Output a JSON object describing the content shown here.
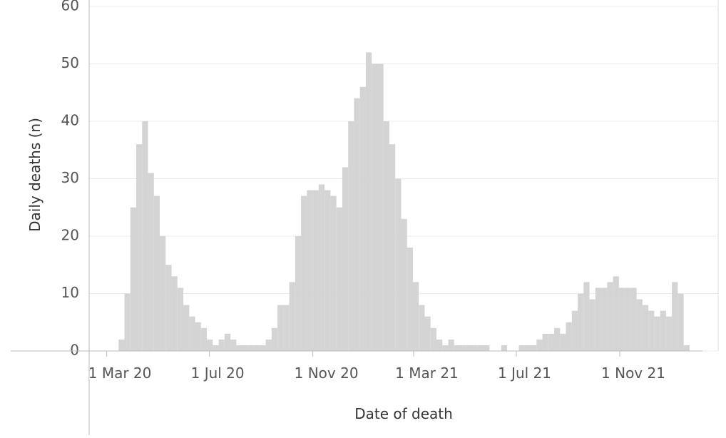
{
  "chart_data": {
    "type": "bar",
    "x_label": "Date of death",
    "y_label": "Daily deaths (n)",
    "x": [
      "2020-03-15",
      "2020-03-22",
      "2020-03-29",
      "2020-04-05",
      "2020-04-12",
      "2020-04-19",
      "2020-04-26",
      "2020-05-03",
      "2020-05-10",
      "2020-05-17",
      "2020-05-24",
      "2020-05-31",
      "2020-06-07",
      "2020-06-14",
      "2020-06-21",
      "2020-06-28",
      "2020-07-05",
      "2020-07-12",
      "2020-07-19",
      "2020-07-26",
      "2020-08-02",
      "2020-08-09",
      "2020-08-16",
      "2020-08-23",
      "2020-08-30",
      "2020-09-06",
      "2020-09-13",
      "2020-09-20",
      "2020-09-27",
      "2020-10-04",
      "2020-10-11",
      "2020-10-18",
      "2020-10-25",
      "2020-11-01",
      "2020-11-08",
      "2020-11-15",
      "2020-11-22",
      "2020-11-29",
      "2020-12-06",
      "2020-12-13",
      "2020-12-20",
      "2020-12-27",
      "2021-01-03",
      "2021-01-10",
      "2021-01-17",
      "2021-01-24",
      "2021-01-31",
      "2021-02-07",
      "2021-02-14",
      "2021-02-21",
      "2021-02-28",
      "2021-03-07",
      "2021-03-14",
      "2021-03-21",
      "2021-03-28",
      "2021-04-04",
      "2021-04-11",
      "2021-04-18",
      "2021-04-25",
      "2021-05-02",
      "2021-05-09",
      "2021-05-16",
      "2021-05-23",
      "2021-05-30",
      "2021-06-06",
      "2021-06-13",
      "2021-06-20",
      "2021-06-27",
      "2021-07-04",
      "2021-07-11",
      "2021-07-18",
      "2021-07-25",
      "2021-08-01",
      "2021-08-08",
      "2021-08-15",
      "2021-08-22",
      "2021-08-29",
      "2021-09-05",
      "2021-09-12",
      "2021-09-19",
      "2021-09-26",
      "2021-10-03",
      "2021-10-10",
      "2021-10-17",
      "2021-10-24",
      "2021-10-31",
      "2021-11-07",
      "2021-11-14",
      "2021-11-21",
      "2021-11-28",
      "2021-12-05",
      "2021-12-12",
      "2021-12-19",
      "2021-12-26",
      "2022-01-02",
      "2022-01-09",
      "2022-01-16"
    ],
    "values": [
      2,
      10,
      25,
      36,
      40,
      31,
      27,
      20,
      15,
      13,
      11,
      8,
      6,
      5,
      4,
      2,
      1,
      2,
      3,
      2,
      1,
      1,
      1,
      1,
      1,
      2,
      4,
      8,
      8,
      12,
      20,
      27,
      28,
      28,
      29,
      28,
      27,
      25,
      32,
      40,
      44,
      46,
      52,
      50,
      50,
      40,
      36,
      30,
      23,
      18,
      12,
      8,
      6,
      4,
      2,
      1,
      2,
      1,
      1,
      1,
      1,
      1,
      1,
      0,
      0,
      1,
      0,
      0,
      1,
      1,
      1,
      2,
      3,
      3,
      4,
      3,
      5,
      7,
      10,
      12,
      9,
      11,
      11,
      12,
      13,
      11,
      11,
      11,
      9,
      8,
      7,
      6,
      7,
      6,
      12,
      10,
      1
    ],
    "color": "#d4d4d4",
    "xlim": [
      "2020-02-09",
      "2022-02-26"
    ],
    "xticks": [
      {
        "value": "2020-03-01",
        "label": "1 Mar 20"
      },
      {
        "value": "2020-07-01",
        "label": "1 Jul 20"
      },
      {
        "value": "2020-11-01",
        "label": "1 Nov 20"
      },
      {
        "value": "2021-03-01",
        "label": "1 Mar 21"
      },
      {
        "value": "2021-07-01",
        "label": "1 Jul 21"
      },
      {
        "value": "2021-11-01",
        "label": "1 Nov 21"
      }
    ],
    "ylim": [
      0,
      60.5
    ],
    "yticks": [
      0,
      10,
      20,
      30,
      40,
      50,
      60
    ],
    "grid": true
  }
}
